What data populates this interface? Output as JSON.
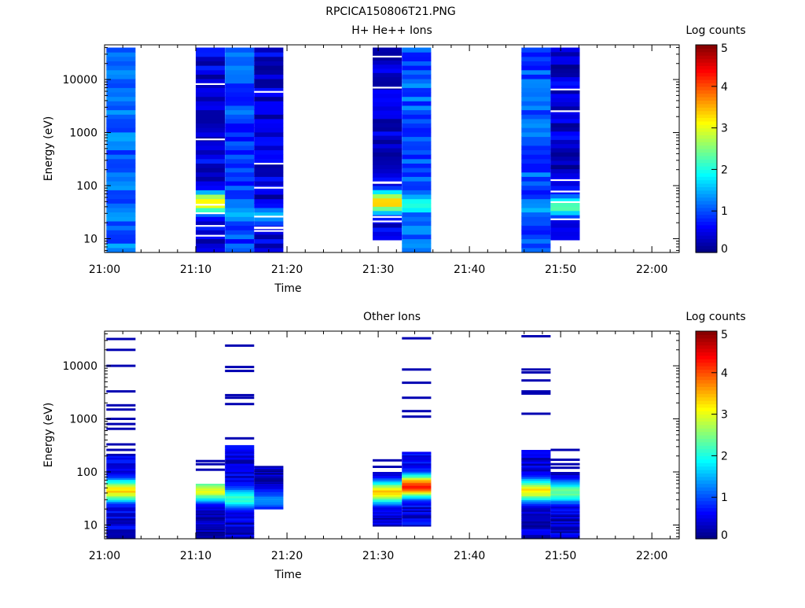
{
  "page_title": "RPCICA150806T21.PNG",
  "colors": {
    "jet": [
      "#00007f",
      "#0000ff",
      "#007fff",
      "#00ffff",
      "#7fff7f",
      "#ffff00",
      "#ff7f00",
      "#ff0000",
      "#7f0000"
    ]
  },
  "chart_data": [
    {
      "type": "heatmap",
      "title": "H+ He++ Ions",
      "xlabel": "Time",
      "ylabel": "Energy (eV)",
      "colorbar_label": "Log counts",
      "colorbar_range": [
        0,
        5
      ],
      "colorbar_ticks": [
        "0",
        "1",
        "2",
        "3",
        "4",
        "5"
      ],
      "x_range_minutes": [
        0,
        63
      ],
      "x_ticks": [
        {
          "t": 0,
          "label": "21:00"
        },
        {
          "t": 10,
          "label": "21:10"
        },
        {
          "t": 20,
          "label": "21:20"
        },
        {
          "t": 30,
          "label": "21:30"
        },
        {
          "t": 40,
          "label": "21:40"
        },
        {
          "t": 50,
          "label": "21:50"
        },
        {
          "t": 60,
          "label": "22:00"
        }
      ],
      "y_scale": "log",
      "y_range": [
        5.5,
        45000
      ],
      "y_ticks": [
        {
          "v": 10,
          "label": "10"
        },
        {
          "v": 100,
          "label": "100"
        },
        {
          "v": 1000,
          "label": "1000"
        },
        {
          "v": 10000,
          "label": "10000"
        }
      ],
      "scans": [
        {
          "t0": 0.2,
          "t1": 3.4,
          "top": 40000,
          "bottom": 5.6,
          "base": 1.15,
          "peak": null,
          "holes": 0
        },
        {
          "t0": 10.0,
          "t1": 13.2,
          "top": 40000,
          "bottom": 5.6,
          "base": 0.45,
          "peak": {
            "e": 48,
            "v": 3.3
          },
          "holes": 6
        },
        {
          "t0": 13.2,
          "t1": 16.4,
          "top": 40000,
          "bottom": 5.6,
          "base": 0.95,
          "peak": {
            "e": 30,
            "v": 1.6
          },
          "holes": 0
        },
        {
          "t0": 16.4,
          "t1": 19.6,
          "top": 40000,
          "bottom": 5.6,
          "base": 0.4,
          "peak": {
            "e": 28,
            "v": 1.5
          },
          "holes": 7
        },
        {
          "t0": 29.4,
          "t1": 32.6,
          "top": 40000,
          "bottom": 9.5,
          "base": 0.45,
          "peak": {
            "e": 50,
            "v": 3.4
          },
          "holes": 6
        },
        {
          "t0": 32.6,
          "t1": 35.8,
          "top": 40000,
          "bottom": 5.6,
          "base": 1.05,
          "peak": {
            "e": 45,
            "v": 2.2
          },
          "holes": 0
        },
        {
          "t0": 45.7,
          "t1": 48.9,
          "top": 40000,
          "bottom": 5.6,
          "base": 1.0,
          "peak": {
            "e": 40,
            "v": 1.5
          },
          "holes": 0
        },
        {
          "t0": 48.9,
          "t1": 52.1,
          "top": 40000,
          "bottom": 9.5,
          "base": 0.4,
          "peak": {
            "e": 42,
            "v": 2.3
          },
          "holes": 6
        }
      ]
    },
    {
      "type": "heatmap",
      "title": "Other Ions",
      "xlabel": "Time",
      "ylabel": "Energy (eV)",
      "colorbar_label": "Log counts",
      "colorbar_range": [
        0,
        5
      ],
      "colorbar_ticks": [
        "0",
        "1",
        "2",
        "3",
        "4",
        "5"
      ],
      "x_range_minutes": [
        0,
        63
      ],
      "x_ticks": [
        {
          "t": 0,
          "label": "21:00"
        },
        {
          "t": 10,
          "label": "21:10"
        },
        {
          "t": 20,
          "label": "21:20"
        },
        {
          "t": 30,
          "label": "21:30"
        },
        {
          "t": 40,
          "label": "21:40"
        },
        {
          "t": 50,
          "label": "21:50"
        },
        {
          "t": 60,
          "label": "22:00"
        }
      ],
      "y_scale": "log",
      "y_range": [
        5.5,
        45000
      ],
      "y_ticks": [
        {
          "v": 10,
          "label": "10"
        },
        {
          "v": 100,
          "label": "100"
        },
        {
          "v": 1000,
          "label": "1000"
        },
        {
          "v": 10000,
          "label": "10000"
        }
      ],
      "scans": [
        {
          "t0": 0.2,
          "t1": 3.4,
          "top": 220,
          "bottom": 5.6,
          "base": 0.5,
          "peak": {
            "e": 45,
            "v": 3.3
          },
          "holes": 0,
          "lines": [
            32000,
            20000,
            10000,
            3300,
            1800,
            1500,
            1000,
            800,
            650,
            330,
            260
          ]
        },
        {
          "t0": 10.0,
          "t1": 13.2,
          "top": 60,
          "bottom": 5.6,
          "base": 0.3,
          "peak": {
            "e": 45,
            "v": 3.0
          },
          "holes": 0,
          "lines": [
            160,
            140,
            110,
            18,
            9
          ]
        },
        {
          "t0": 13.2,
          "t1": 16.4,
          "top": 320,
          "bottom": 5.6,
          "base": 0.4,
          "peak": {
            "e": 32,
            "v": 2.1
          },
          "holes": 0,
          "lines": [
            24000,
            9500,
            8000,
            2800,
            2500,
            1900,
            430
          ]
        },
        {
          "t0": 16.4,
          "t1": 19.6,
          "top": 130,
          "bottom": 20,
          "base": 0.3,
          "peak": {
            "e": 30,
            "v": 1.3
          },
          "holes": 0,
          "lines": []
        },
        {
          "t0": 29.4,
          "t1": 32.6,
          "top": 100,
          "bottom": 9.5,
          "base": 0.35,
          "peak": {
            "e": 42,
            "v": 3.4
          },
          "holes": 0,
          "lines": [
            165,
            125
          ]
        },
        {
          "t0": 32.6,
          "t1": 35.8,
          "top": 240,
          "bottom": 9.5,
          "base": 0.5,
          "peak": {
            "e": 55,
            "v": 4.2
          },
          "holes": 0,
          "lines": [
            33000,
            8500,
            4800,
            2500,
            1400,
            1100
          ]
        },
        {
          "t0": 45.7,
          "t1": 48.9,
          "top": 260,
          "bottom": 5.6,
          "base": 0.35,
          "peak": {
            "e": 45,
            "v": 3.2
          },
          "holes": 0,
          "lines": [
            36000,
            8500,
            7500,
            5300,
            3300,
            3000,
            1250
          ]
        },
        {
          "t0": 48.9,
          "t1": 52.1,
          "top": 100,
          "bottom": 5.6,
          "base": 0.4,
          "peak": {
            "e": 42,
            "v": 2.4
          },
          "holes": 0,
          "lines": [
            260,
            170,
            140,
            120
          ]
        }
      ]
    }
  ]
}
